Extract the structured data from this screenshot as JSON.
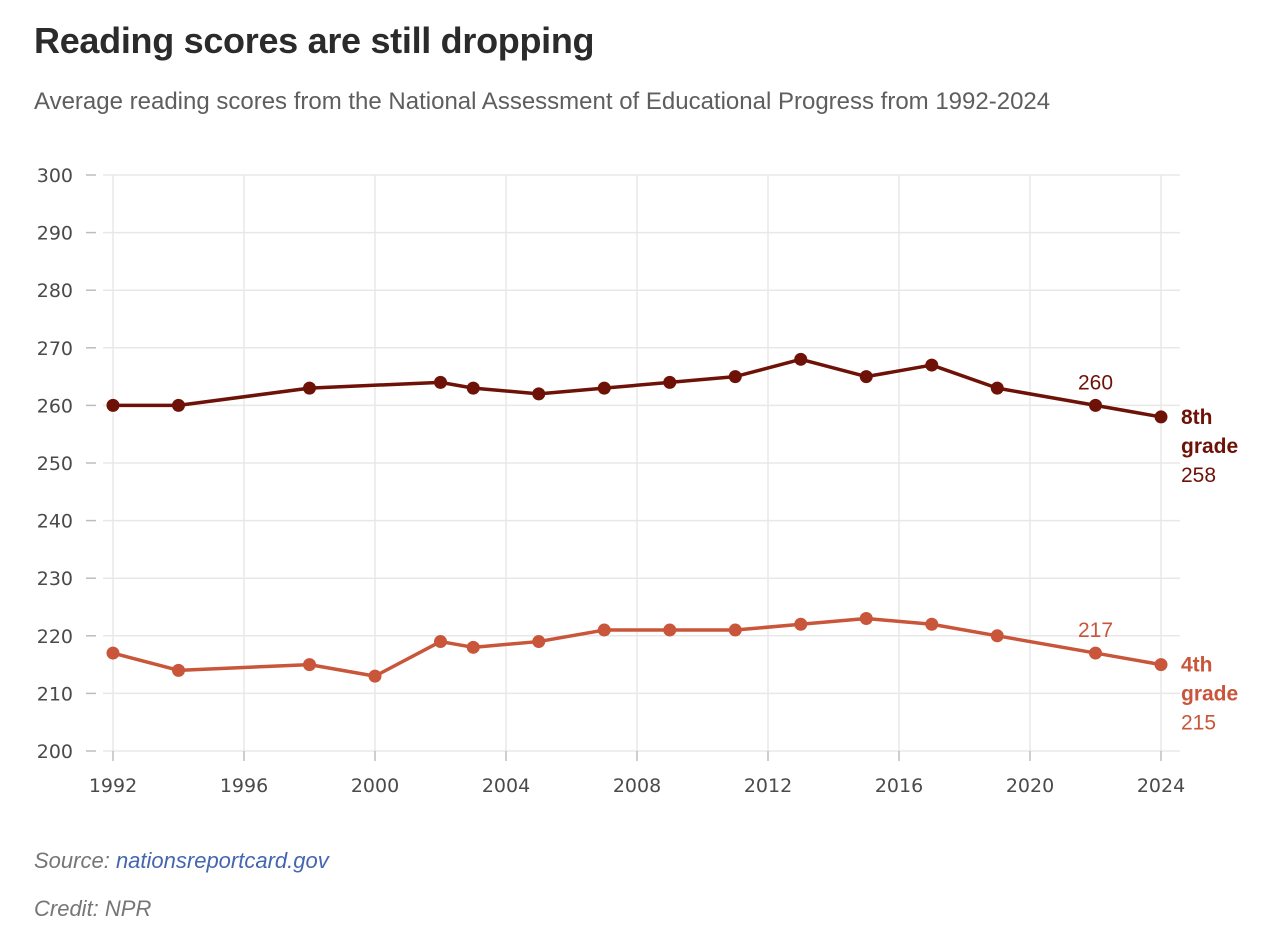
{
  "header": {
    "title": "Reading scores are still dropping",
    "subtitle": "Average reading scores from the National Assessment of Educational Progress from 1992-2024"
  },
  "footer": {
    "source_prefix": "Source: ",
    "source_link": "nationsreportcard.gov",
    "credit": "Credit: NPR"
  },
  "chart_data": {
    "type": "line",
    "title": "Reading scores are still dropping",
    "subtitle": "Average reading scores from the National Assessment of Educational Progress from 1992-2024",
    "xlabel": "",
    "ylabel": "",
    "xlim": [
      1992,
      2024
    ],
    "ylim": [
      200,
      300
    ],
    "x_ticks": [
      1992,
      1996,
      2000,
      2004,
      2008,
      2012,
      2016,
      2020,
      2024
    ],
    "y_ticks": [
      200,
      210,
      220,
      230,
      240,
      250,
      260,
      270,
      280,
      290,
      300
    ],
    "grid": true,
    "legend": "direct labels at right end of lines",
    "series": [
      {
        "name": "8th grade",
        "color": "#6e1208",
        "x": [
          1992,
          1994,
          1998,
          2002,
          2003,
          2005,
          2007,
          2009,
          2011,
          2013,
          2015,
          2017,
          2019,
          2022,
          2024
        ],
        "values": [
          260,
          260,
          263,
          264,
          263,
          262,
          263,
          264,
          265,
          268,
          265,
          267,
          263,
          260,
          258
        ],
        "end_label": [
          "8th",
          "grade"
        ],
        "end_value_label": "258",
        "annotation": {
          "x": 2022,
          "text": "260"
        }
      },
      {
        "name": "4th grade",
        "color": "#c9553a",
        "x": [
          1992,
          1994,
          1998,
          2000,
          2002,
          2003,
          2005,
          2007,
          2009,
          2011,
          2013,
          2015,
          2017,
          2019,
          2022,
          2024
        ],
        "values": [
          217,
          214,
          215,
          213,
          219,
          218,
          219,
          221,
          221,
          221,
          222,
          223,
          222,
          220,
          217,
          215
        ],
        "end_label": [
          "4th",
          "grade"
        ],
        "end_value_label": "215",
        "annotation": {
          "x": 2022,
          "text": "217"
        }
      }
    ]
  }
}
